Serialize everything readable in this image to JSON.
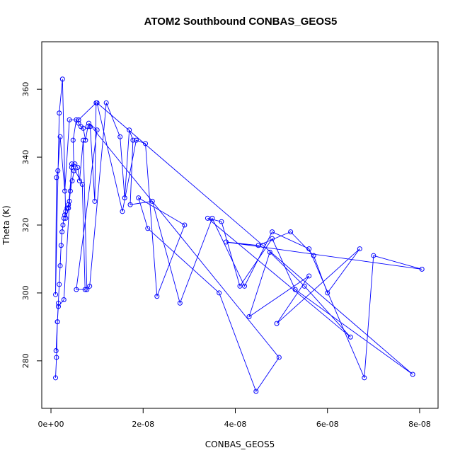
{
  "chart_data": {
    "type": "scatter",
    "title": "ATOM2 Southbound CONBAS_GEOS5",
    "xlabel": "CONBAS_GEOS5",
    "ylabel": "Theta (K)",
    "xlim": [
      -2e-09,
      8.4e-08
    ],
    "ylim": [
      266,
      374
    ],
    "x_ticks": [
      0,
      2e-08,
      4e-08,
      6e-08,
      8e-08
    ],
    "x_tick_labels": [
      "0e+00",
      "2e-08",
      "4e-08",
      "6e-08",
      "8e-08"
    ],
    "y_ticks": [
      280,
      300,
      320,
      340,
      360
    ],
    "y_tick_labels": [
      "280",
      "300",
      "320",
      "340",
      "360"
    ],
    "grid": false,
    "connected": true,
    "color": "#0000ff",
    "series": [
      {
        "x": [
          1e-09,
          1.2e-09,
          1.4e-09,
          1.6e-09,
          1.8e-09,
          2e-09,
          2.2e-09,
          2.4e-09,
          2.6e-09,
          2.8e-09,
          3e-09,
          3.2e-09,
          3.5e-09,
          3.8e-09,
          4e-09,
          4.2e-09,
          4.6e-09,
          5e-09,
          4.8e-09,
          5.5e-09,
          6e-09,
          6.5e-09,
          7e-09,
          7.5e-09,
          8e-09,
          8.5e-09,
          9.5e-09,
          9.8e-09,
          6e-09,
          4e-09,
          3e-09,
          2e-09,
          1.5e-09,
          1.2e-09,
          1e-09,
          1.8e-09,
          2.5e-09,
          3.2e-09,
          3.8e-09,
          4.5e-09,
          5.2e-09,
          5.8e-09,
          6.2e-09,
          7e-09,
          7.8e-09,
          8.4e-09,
          1.2e-08,
          1.5e-08,
          1.6e-08,
          1.7e-08,
          1.78e-08,
          1.72e-08,
          2.2e-08,
          2.8e-08,
          3.5e-08,
          4.2e-08,
          4.8e-08,
          5.6e-08,
          6.8e-08,
          7e-08,
          8.05e-08,
          3.8e-08,
          4.5e-08,
          5.2e-08,
          5.7e-08,
          6e-08,
          6.7e-08,
          4.9e-08,
          5.6e-08,
          4.3e-08,
          4.75e-08,
          5.5e-08,
          6.5e-08,
          3.4e-08,
          3.7e-08,
          4.1e-08,
          4.8e-08,
          5.3e-08,
          7.85e-08,
          4.6e-08,
          1e-08,
          1.55e-08,
          1.85e-08,
          2.05e-08,
          2.3e-08,
          2.9e-08,
          1.9e-08,
          2.1e-08,
          3.65e-08,
          4.45e-08,
          4.95e-08,
          8.2e-09,
          1e-08,
          5.5e-09,
          7.4e-09,
          6.8e-09,
          4.5e-09,
          2.8e-09,
          1.6e-09,
          1.4e-09,
          1.1e-09
        ],
        "y": [
          275,
          281,
          291.5,
          297,
          302.5,
          308,
          314,
          318,
          320,
          322,
          323,
          324,
          325,
          326,
          327,
          330,
          333,
          336,
          345,
          351,
          350,
          349,
          348.5,
          345,
          349,
          349,
          327,
          356,
          351,
          351,
          330,
          346,
          336,
          334,
          299.5,
          353,
          363,
          322,
          325,
          337,
          338,
          337,
          333,
          345,
          301,
          302,
          356,
          346,
          328,
          348,
          345,
          326,
          327,
          297,
          322,
          302,
          318,
          313,
          275,
          311,
          307,
          315,
          314,
          318,
          311,
          300,
          313,
          291,
          305,
          293,
          312,
          302,
          287,
          322,
          321,
          302,
          316,
          301,
          276,
          314,
          356,
          324,
          345,
          344,
          299,
          320,
          328,
          319,
          300,
          271,
          281,
          350,
          348,
          301,
          301,
          332,
          338,
          298,
          296,
          291.5,
          283
        ]
      }
    ]
  }
}
